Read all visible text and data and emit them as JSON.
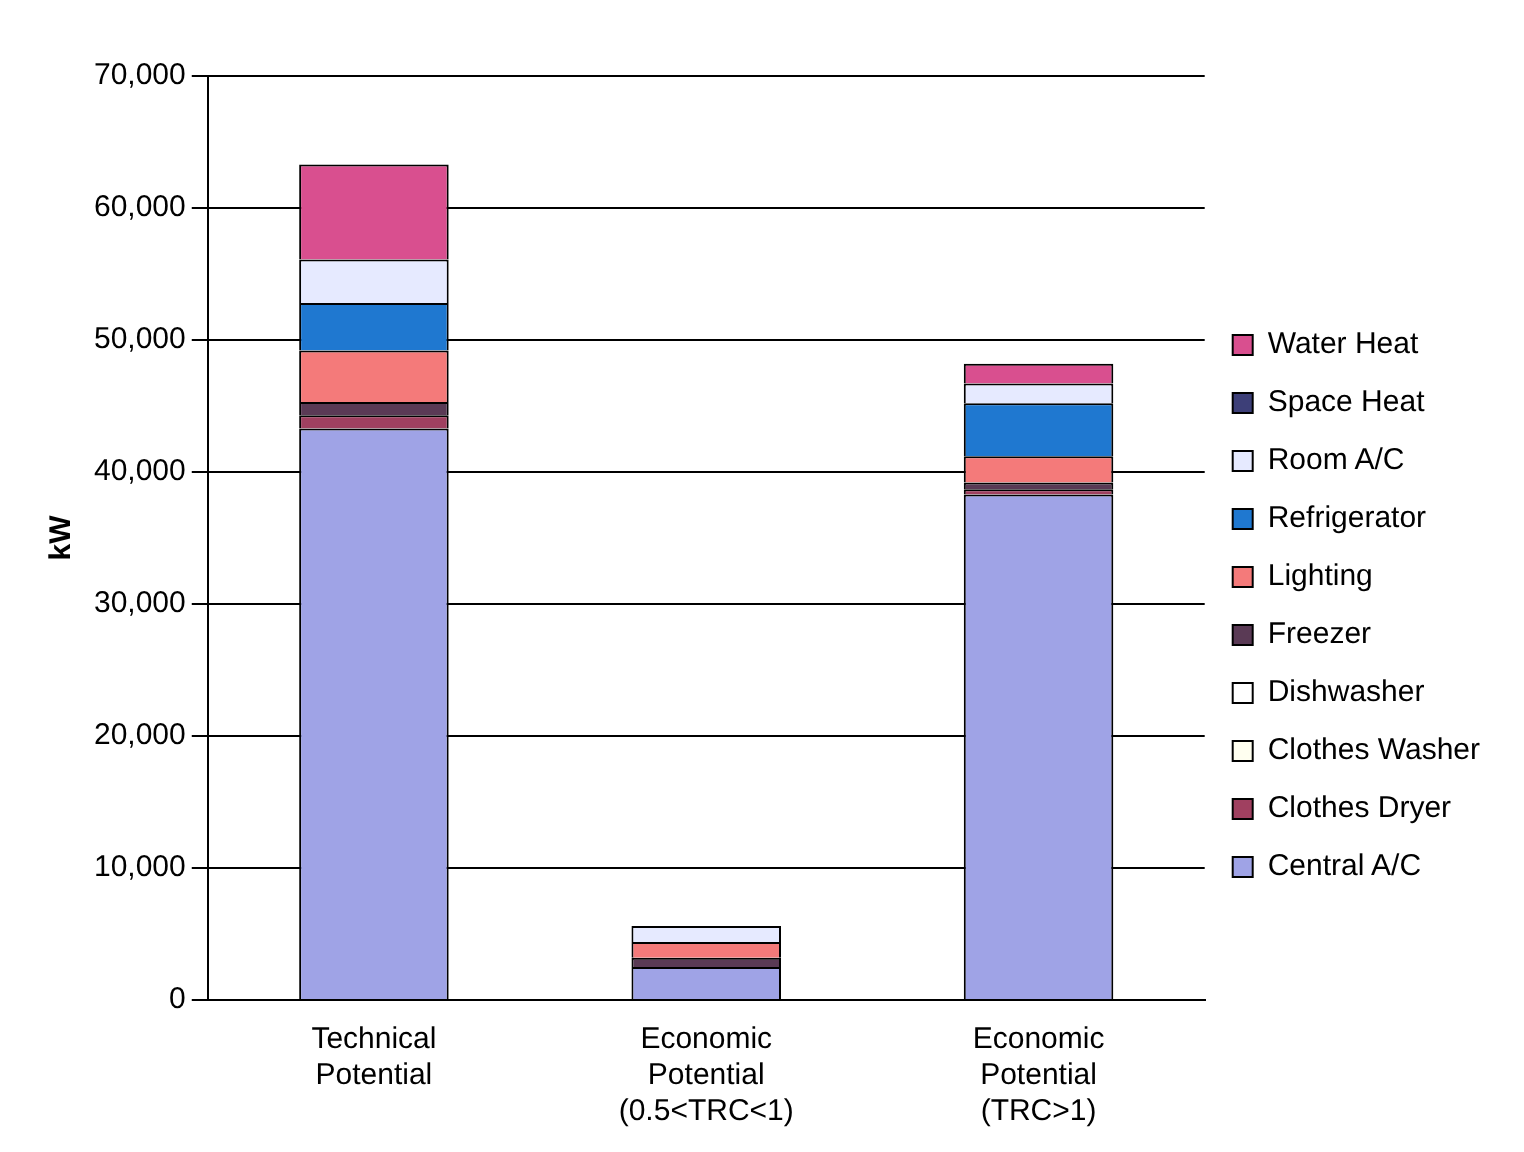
{
  "chart_data": {
    "type": "bar",
    "stacked": true,
    "ylabel": "kW",
    "categories": [
      "Technical\nPotential",
      "Economic\nPotential\n(0.5<TRC<1)",
      "Economic\nPotential\n(TRC>1)"
    ],
    "series": [
      {
        "name": "Central A/C",
        "color": "#9fa3e6",
        "values": [
          43300,
          2500,
          38300
        ]
      },
      {
        "name": "Clothes Dryer",
        "color": "#a04060",
        "values": [
          1000,
          0,
          400
        ]
      },
      {
        "name": "Clothes Washer",
        "color": "#fffff0",
        "values": [
          0,
          0,
          0
        ]
      },
      {
        "name": "Dishwasher",
        "color": "#ffffff",
        "values": [
          0,
          0,
          0
        ]
      },
      {
        "name": "Freezer",
        "color": "#5a3a55",
        "values": [
          1000,
          700,
          500
        ]
      },
      {
        "name": "Lighting",
        "color": "#f47a7a",
        "values": [
          3900,
          1200,
          2000
        ]
      },
      {
        "name": "Refrigerator",
        "color": "#1f78d0",
        "values": [
          3600,
          0,
          4000
        ]
      },
      {
        "name": "Room A/C",
        "color": "#e6eaff",
        "values": [
          3300,
          1200,
          1500
        ]
      },
      {
        "name": "Space Heat",
        "color": "#3d3f78",
        "values": [
          0,
          0,
          0
        ]
      },
      {
        "name": "Water Heat",
        "color": "#d94f8f",
        "values": [
          7200,
          0,
          1500
        ]
      }
    ],
    "ylim": [
      0,
      70000
    ],
    "yticks": [
      {
        "value": 0,
        "label": "0"
      },
      {
        "value": 10000,
        "label": "10,000"
      },
      {
        "value": 20000,
        "label": "20,000"
      },
      {
        "value": 30000,
        "label": "30,000"
      },
      {
        "value": 40000,
        "label": "40,000"
      },
      {
        "value": 50000,
        "label": "50,000"
      },
      {
        "value": 60000,
        "label": "60,000"
      },
      {
        "value": 70000,
        "label": "70,000"
      }
    ],
    "grid": "y",
    "legend": "right"
  }
}
